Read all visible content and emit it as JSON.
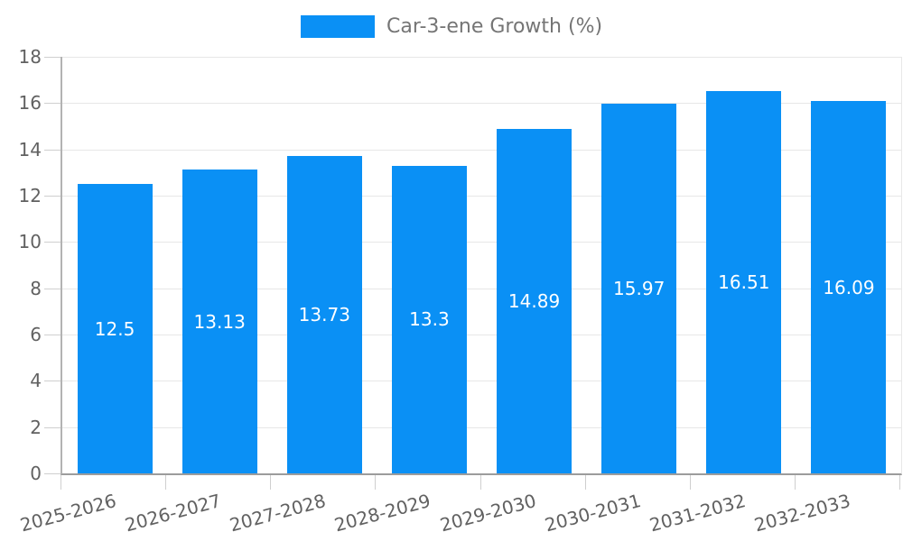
{
  "chart_data": {
    "type": "bar",
    "title": "Car-3-ene Growth (%)",
    "categories": [
      "2025-2026",
      "2026-2027",
      "2027-2028",
      "2028-2029",
      "2029-2030",
      "2030-2031",
      "2031-2032",
      "2032-2033"
    ],
    "values": [
      12.5,
      13.13,
      13.73,
      13.3,
      14.89,
      15.97,
      16.51,
      16.09
    ],
    "value_labels": [
      "12.5",
      "13.13",
      "13.73",
      "13.3",
      "14.89",
      "15.97",
      "16.51",
      "16.09"
    ],
    "xlabel": "",
    "ylabel": "",
    "ylim": [
      0,
      18
    ],
    "yticks": [
      0,
      2,
      4,
      6,
      8,
      10,
      12,
      14,
      16,
      18
    ],
    "grid": true,
    "legend": {
      "position": "top",
      "entries": [
        {
          "label": "Car-3-ene Growth (%)",
          "color": "#0A90F5"
        }
      ]
    },
    "colors": {
      "bar": "#0A90F5",
      "bar_label": "#ffffff",
      "grid": "#e7e7e7",
      "tick": "#cfcfcf",
      "axis_text": "#616161",
      "legend_text": "#757575"
    }
  }
}
